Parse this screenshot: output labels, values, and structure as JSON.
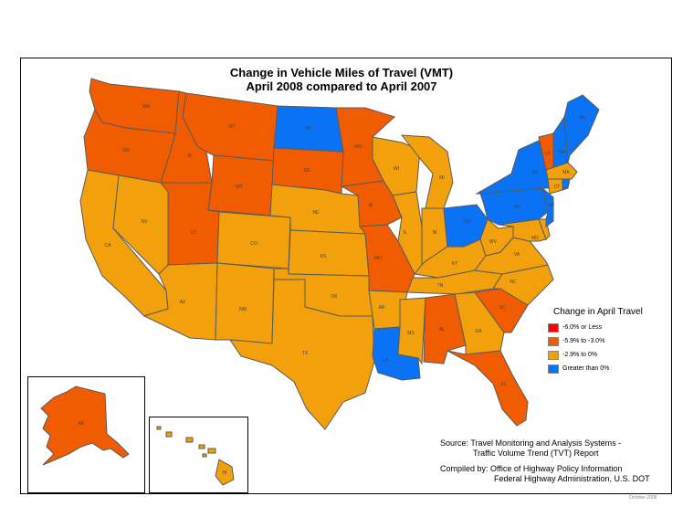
{
  "title_line1": "Change in Vehicle Miles of Travel (VMT)",
  "title_line2": "April 2008 compared to April 2007",
  "colors": {
    "bin1": "#ff0000",
    "bin2": "#f25c00",
    "bin3": "#f2a10c",
    "bin4": "#0a72f5"
  },
  "legend": {
    "title": "Change in April Travel",
    "items": [
      {
        "label": "-6.0% or Less",
        "bin": "bin1"
      },
      {
        "label": "-5.9% to -3.0%",
        "bin": "bin2"
      },
      {
        "label": "-2.9% to 0%",
        "bin": "bin3"
      },
      {
        "label": "Greater than 0%",
        "bin": "bin4"
      }
    ]
  },
  "states": {
    "WA": "bin2",
    "OR": "bin2",
    "ID": "bin2",
    "MT": "bin2",
    "WY": "bin2",
    "ND": "bin4",
    "SD": "bin2",
    "MN": "bin2",
    "IA": "bin2",
    "MO": "bin2",
    "UT": "bin2",
    "AL": "bin2",
    "SC": "bin2",
    "FL": "bin2",
    "VT": "bin2",
    "NH": "bin4",
    "ME": "bin4",
    "NY": "bin4",
    "PA": "bin4",
    "OH": "bin4",
    "NJ": "bin4",
    "LA": "bin4",
    "RI": "bin4",
    "MA": "bin3",
    "CT": "bin3",
    "CA": "bin3",
    "NV": "bin3",
    "AZ": "bin3",
    "NM": "bin3",
    "CO": "bin3",
    "NE": "bin3",
    "KS": "bin3",
    "OK": "bin3",
    "TX": "bin3",
    "AR": "bin3",
    "MS": "bin3",
    "GA": "bin3",
    "TN": "bin3",
    "KY": "bin3",
    "IL": "bin3",
    "IN": "bin3",
    "WI": "bin3",
    "MI": "bin3",
    "WV": "bin3",
    "VA": "bin3",
    "NC": "bin3",
    "MD": "bin3",
    "DE": "bin3",
    "AK": "bin2",
    "HI": "bin3"
  },
  "source_line1": "Source: Travel Monitoring and Analysis Systems -",
  "source_line2": "Traffic Volume Trend (TVT) Report",
  "compiled_line1": "Compiled by: Office of Highway Policy Information",
  "compiled_line2": "Federal Highway Administration, U.S. DOT",
  "date_note": "October 2008"
}
